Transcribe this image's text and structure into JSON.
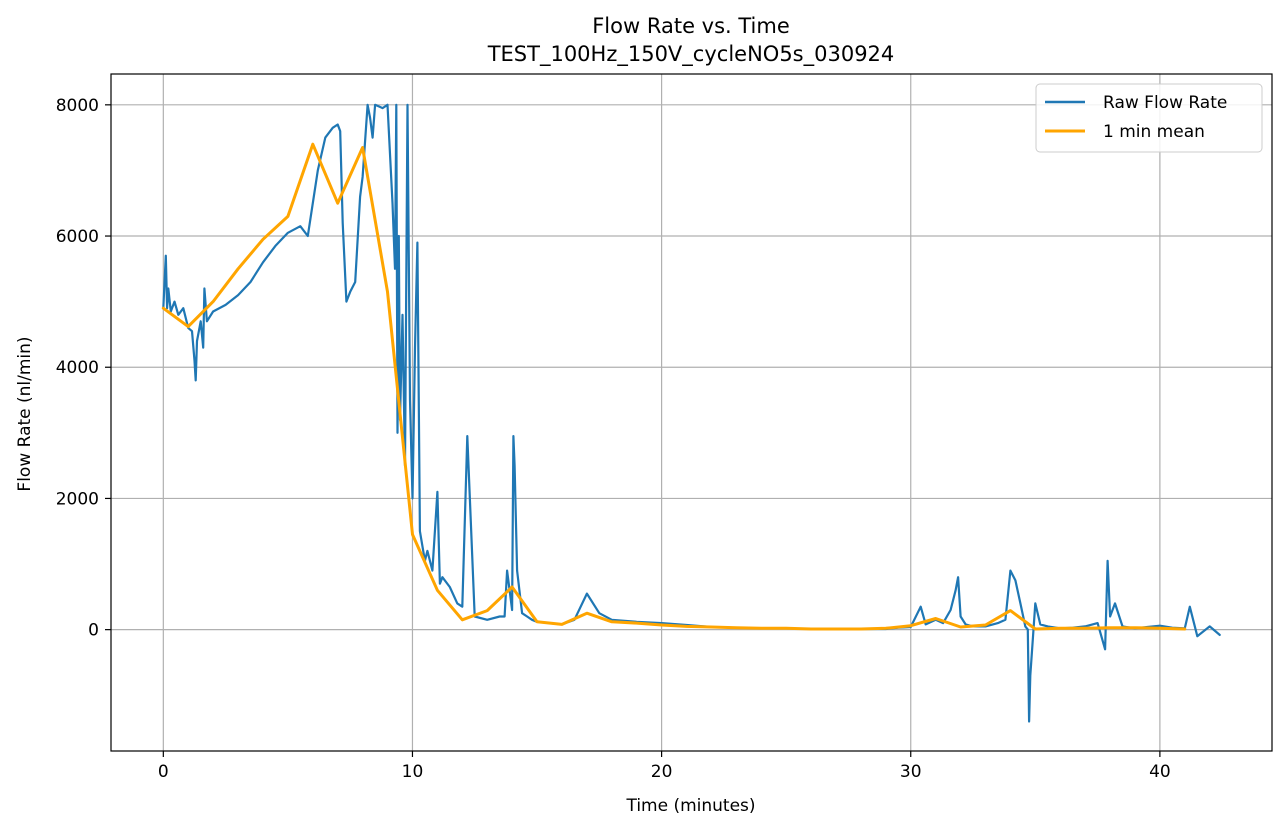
{
  "chart_data": {
    "type": "line",
    "title": "Flow Rate vs. Time",
    "subtitle": "TEST_100Hz_150V_cycleNO5s_030924",
    "xlabel": "Time (minutes)",
    "ylabel": "Flow Rate (nl/min)",
    "xlim": [
      -2.1,
      44.5
    ],
    "ylim": [
      -1850,
      8470
    ],
    "xticks": [
      0,
      10,
      20,
      30,
      40
    ],
    "yticks": [
      0,
      2000,
      4000,
      6000,
      8000
    ],
    "grid": true,
    "legend_position": "top-right",
    "series": [
      {
        "name": "Raw Flow Rate",
        "color": "#1f77b4",
        "x": [
          0.0,
          0.1,
          0.15,
          0.2,
          0.3,
          0.45,
          0.6,
          0.8,
          1.0,
          1.15,
          1.25,
          1.3,
          1.35,
          1.5,
          1.6,
          1.65,
          1.75,
          2.0,
          2.5,
          3.0,
          3.5,
          4.0,
          4.5,
          5.0,
          5.5,
          5.8,
          6.0,
          6.2,
          6.5,
          6.8,
          7.0,
          7.1,
          7.2,
          7.35,
          7.5,
          7.7,
          7.9,
          8.0,
          8.2,
          8.3,
          8.4,
          8.5,
          8.8,
          9.0,
          9.2,
          9.3,
          9.35,
          9.4,
          9.45,
          9.5,
          9.6,
          9.7,
          9.8,
          9.9,
          10.0,
          10.1,
          10.2,
          10.3,
          10.5,
          10.6,
          10.8,
          11.0,
          11.1,
          11.2,
          11.5,
          11.8,
          12.0,
          12.2,
          12.5,
          13.0,
          13.5,
          13.7,
          13.8,
          14.0,
          14.05,
          14.1,
          14.2,
          14.4,
          14.6,
          14.8,
          15.0,
          15.5,
          16.0,
          16.5,
          17.0,
          17.5,
          18.0,
          19.0,
          20.0,
          21.0,
          22.0,
          23.0,
          24.0,
          25.0,
          26.0,
          27.0,
          28.0,
          29.0,
          29.5,
          30.0,
          30.4,
          30.6,
          31.0,
          31.3,
          31.6,
          31.8,
          31.9,
          32.0,
          32.2,
          32.5,
          33.0,
          33.5,
          33.8,
          34.0,
          34.2,
          34.4,
          34.6,
          34.7,
          34.75,
          34.8,
          35.0,
          35.2,
          35.5,
          36.0,
          36.5,
          37.0,
          37.5,
          37.8,
          37.9,
          38.0,
          38.2,
          38.5,
          39.0,
          39.5,
          40.0,
          40.5,
          41.0,
          41.2,
          41.5,
          42.0,
          42.4
        ],
        "values": [
          4900,
          5700,
          4900,
          5200,
          4850,
          5000,
          4800,
          4900,
          4600,
          4550,
          4100,
          3800,
          4400,
          4700,
          4300,
          5200,
          4700,
          4850,
          4950,
          5100,
          5300,
          5600,
          5850,
          6050,
          6150,
          6000,
          6500,
          7000,
          7500,
          7650,
          7700,
          7600,
          6200,
          5000,
          5150,
          5300,
          6600,
          6900,
          8000,
          7800,
          7500,
          8000,
          7950,
          8000,
          6500,
          5500,
          8000,
          3000,
          6000,
          3200,
          4800,
          2500,
          8000,
          3500,
          2000,
          4300,
          5900,
          1500,
          1050,
          1200,
          900,
          2100,
          700,
          800,
          650,
          400,
          350,
          2950,
          200,
          150,
          200,
          200,
          900,
          300,
          2950,
          2500,
          900,
          250,
          200,
          150,
          120,
          100,
          80,
          150,
          550,
          250,
          150,
          120,
          100,
          70,
          40,
          30,
          20,
          20,
          10,
          10,
          10,
          10,
          30,
          40,
          350,
          80,
          150,
          100,
          300,
          600,
          800,
          200,
          80,
          50,
          50,
          100,
          150,
          900,
          750,
          400,
          50,
          0,
          -1400,
          -700,
          400,
          80,
          50,
          20,
          30,
          50,
          100,
          -300,
          1050,
          200,
          400,
          50,
          20,
          40,
          60,
          30,
          20,
          350,
          -100,
          50,
          -80
        ]
      },
      {
        "name": "1 min mean",
        "color": "#ffa500",
        "x": [
          0,
          1,
          2,
          3,
          4,
          5,
          6,
          7,
          8,
          9,
          10,
          11,
          12,
          13,
          14,
          15,
          16,
          17,
          18,
          19,
          20,
          21,
          22,
          23,
          24,
          25,
          26,
          27,
          28,
          29,
          30,
          31,
          32,
          33,
          34,
          35,
          36,
          37,
          38,
          39,
          40,
          41
        ],
        "values": [
          4900,
          4620,
          5000,
          5500,
          5950,
          6300,
          7400,
          6500,
          7350,
          5150,
          1450,
          600,
          150,
          290,
          650,
          120,
          80,
          250,
          120,
          100,
          70,
          50,
          40,
          30,
          20,
          20,
          10,
          10,
          10,
          20,
          60,
          170,
          40,
          70,
          290,
          10,
          20,
          20,
          30,
          30,
          20,
          10
        ]
      }
    ]
  }
}
